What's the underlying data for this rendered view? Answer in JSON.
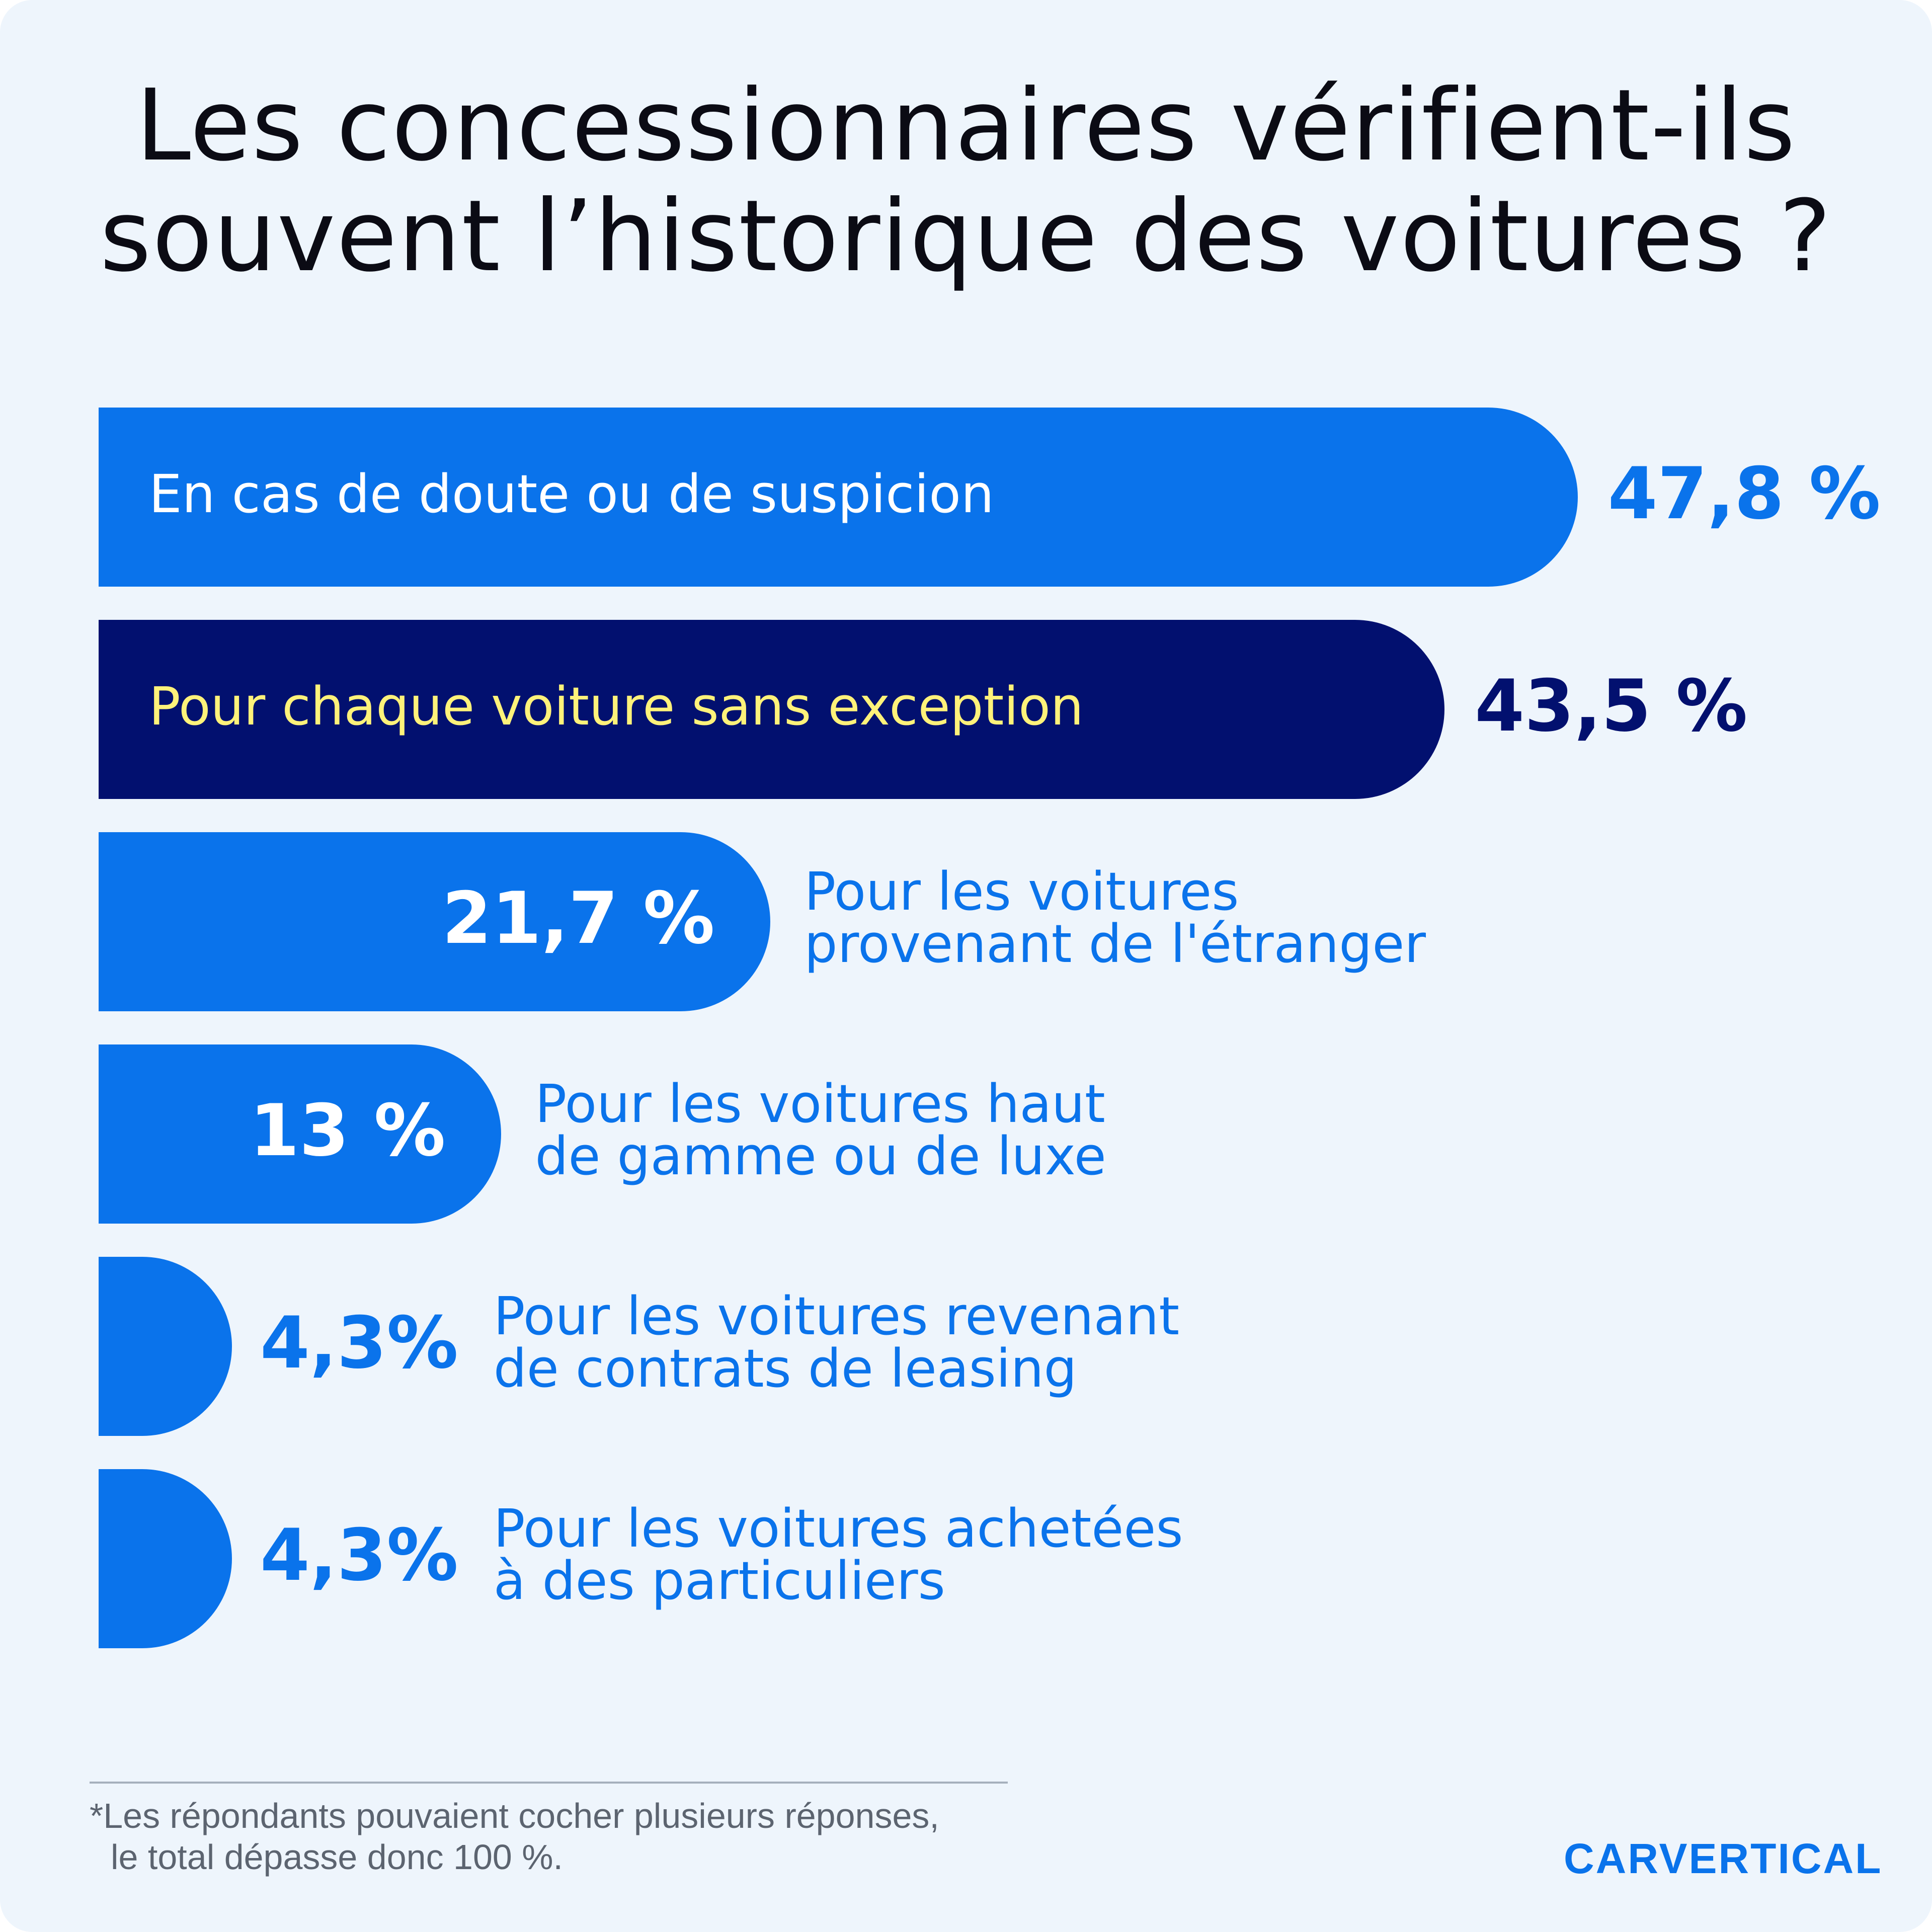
{
  "title": {
    "line1": "Les concessionnaires vérifient-ils",
    "line2": "souvent l’historique des voitures ?"
  },
  "colors": {
    "background": "#eef5fc",
    "bar_blue": "#0a73eb",
    "bar_navy": "#02106f",
    "highlight_text": "#fff27a"
  },
  "chart_data": {
    "type": "bar",
    "orientation": "horizontal",
    "unit": "%",
    "title": "Les concessionnaires vérifient-ils souvent l’historique des voitures ?",
    "xlim": [
      0,
      100
    ],
    "grid": false,
    "legend": "none",
    "categories": [
      "En cas de doute ou de suspicion",
      "Pour chaque voiture sans exception",
      "Pour les voitures provenant de l'étranger",
      "Pour les voitures haut de gamme ou de luxe",
      "Pour les voitures revenant de contrats de leasing",
      "Pour les voitures achetées à des particuliers"
    ],
    "values": [
      47.8,
      43.5,
      21.7,
      13,
      4.3,
      4.3
    ],
    "bars": [
      {
        "label_lines": [
          "En cas de doute ou de suspicion"
        ],
        "value": 47.8,
        "value_label": "47,8 %",
        "label_position": "inside",
        "value_position": "outside",
        "fill": "#0a73eb",
        "label_color": "#ffffff",
        "value_color": "#0a73eb"
      },
      {
        "label_lines": [
          "Pour chaque voiture sans exception"
        ],
        "value": 43.5,
        "value_label": "43,5 %",
        "label_position": "inside",
        "value_position": "outside",
        "fill": "#02106f",
        "label_color": "#fff27a",
        "value_color": "#02106f"
      },
      {
        "label_lines": [
          "Pour les voitures",
          "provenant de l'étranger"
        ],
        "value": 21.7,
        "value_label": "21,7 %",
        "label_position": "outside",
        "value_position": "inside",
        "fill": "#0a73eb",
        "label_color": "#0a73eb",
        "value_color": "#ffffff"
      },
      {
        "label_lines": [
          "Pour les voitures haut",
          "de gamme ou de luxe"
        ],
        "value": 13,
        "value_label": "13 %",
        "label_position": "outside",
        "value_position": "inside",
        "fill": "#0a73eb",
        "label_color": "#0a73eb",
        "value_color": "#ffffff"
      },
      {
        "label_lines": [
          "Pour les voitures revenant",
          "de contrats de leasing"
        ],
        "value": 4.3,
        "value_label": "4,3%",
        "label_position": "outside",
        "value_position": "outside",
        "fill": "#0a73eb",
        "label_color": "#0a73eb",
        "value_color": "#0a73eb"
      },
      {
        "label_lines": [
          "Pour les voitures achetées",
          "à des particuliers"
        ],
        "value": 4.3,
        "value_label": "4,3%",
        "label_position": "outside",
        "value_position": "outside",
        "fill": "#0a73eb",
        "label_color": "#0a73eb",
        "value_color": "#0a73eb"
      }
    ]
  },
  "footnote": {
    "line1": "*Les répondants pouvaient cocher plusieurs réponses,",
    "line2": "le total dépasse donc 100 %."
  },
  "logo": {
    "text": "CARVERTICAL"
  }
}
